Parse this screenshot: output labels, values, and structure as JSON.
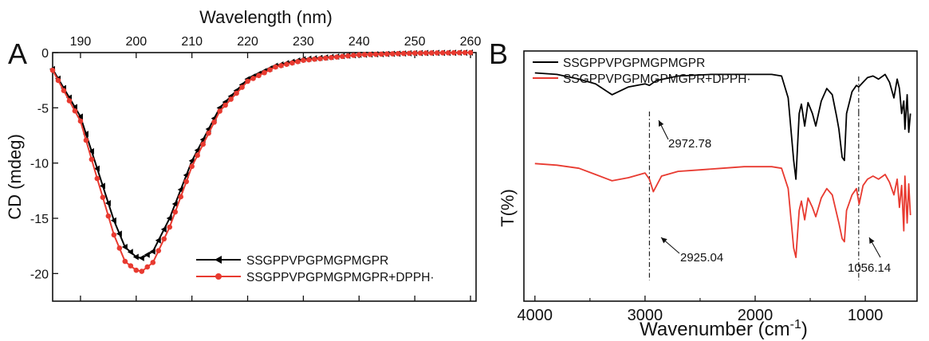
{
  "chart_data": [
    {
      "panel": "A",
      "type": "line",
      "xlabel": "Wavelength (nm)",
      "ylabel": "CD (mdeg)",
      "xlim": [
        185,
        261
      ],
      "ylim": [
        -22.5,
        0
      ],
      "xticks": [
        190,
        200,
        210,
        220,
        230,
        240,
        250,
        260
      ],
      "yticks": [
        0,
        -5,
        -10,
        -15,
        -20
      ],
      "x_axis_position": "top",
      "legend_position": "bottom-right",
      "series": [
        {
          "name": "SSGPPVPGPMGPMGPR",
          "color": "#000000",
          "marker": "left-triangle",
          "x": [
            185,
            190,
            193,
            196,
            198,
            200,
            201,
            203,
            206,
            210,
            215,
            220,
            225,
            230,
            240,
            250,
            260
          ],
          "y": [
            -1.5,
            -5.8,
            -10.5,
            -15.2,
            -17.6,
            -18.5,
            -18.6,
            -18.0,
            -15.0,
            -9.8,
            -5.0,
            -2.4,
            -1.2,
            -0.6,
            -0.2,
            -0.05,
            0
          ]
        },
        {
          "name": "SSGPPVPGPMGPMGPR+DPPH·",
          "color": "#e83a30",
          "marker": "circle",
          "x": [
            185,
            190,
            193,
            196,
            198,
            200,
            201,
            203,
            206,
            210,
            215,
            220,
            225,
            230,
            240,
            250,
            260
          ],
          "y": [
            -1.6,
            -6.2,
            -11.4,
            -16.5,
            -18.9,
            -19.7,
            -19.8,
            -19.0,
            -15.8,
            -10.3,
            -5.3,
            -2.6,
            -1.3,
            -0.7,
            -0.2,
            -0.05,
            0
          ]
        }
      ]
    },
    {
      "panel": "B",
      "type": "line",
      "xlabel": "Wavenumber (cm",
      "xlabel_sup": "-1",
      "xlabel_close": ")",
      "ylabel": "T(%)",
      "xlim": [
        4100,
        530
      ],
      "xticks": [
        4000,
        3000,
        2000,
        1000
      ],
      "legend_position": "top-left",
      "vlines": [
        2960,
        1060
      ],
      "annotations": [
        {
          "text": "2972.78",
          "x": 2960,
          "series": 0
        },
        {
          "text": "2925.04",
          "x": 2925,
          "series": 1
        },
        {
          "text": "1056.14",
          "x": 1056,
          "series": 1
        }
      ],
      "series": [
        {
          "name": "SSGPPVPGPMGPMGPR",
          "color": "#000000",
          "x": [
            4000,
            3800,
            3600,
            3450,
            3300,
            3150,
            3000,
            2960,
            2900,
            2700,
            2400,
            2100,
            1850,
            1760,
            1700,
            1650,
            1630,
            1600,
            1580,
            1550,
            1520,
            1480,
            1450,
            1400,
            1350,
            1300,
            1260,
            1240,
            1210,
            1190,
            1170,
            1120,
            1080,
            1060,
            1020,
            980,
            930,
            880,
            820,
            780,
            740,
            710,
            690,
            670,
            650,
            640,
            620,
            605,
            590
          ],
          "y": [
            96,
            95,
            92,
            89,
            82,
            87,
            89,
            88,
            91,
            94,
            95,
            95,
            95,
            94,
            80,
            40,
            28,
            70,
            76,
            62,
            77,
            70,
            62,
            78,
            86,
            82,
            68,
            60,
            42,
            40,
            70,
            84,
            88,
            87,
            90,
            93,
            94,
            92,
            95,
            90,
            80,
            92,
            86,
            70,
            78,
            60,
            82,
            58,
            70
          ]
        },
        {
          "name": "SSGPPVPGPMGPMGPR+DPPH·",
          "color": "#e83a30",
          "x": [
            4000,
            3800,
            3600,
            3450,
            3300,
            3150,
            3000,
            2960,
            2925,
            2850,
            2700,
            2500,
            2300,
            2100,
            1850,
            1760,
            1700,
            1650,
            1630,
            1600,
            1580,
            1550,
            1520,
            1480,
            1450,
            1400,
            1350,
            1300,
            1260,
            1240,
            1210,
            1190,
            1170,
            1120,
            1080,
            1056,
            1020,
            980,
            930,
            880,
            820,
            780,
            740,
            710,
            690,
            670,
            650,
            640,
            620,
            605,
            590
          ],
          "y": [
            38,
            37,
            35,
            31,
            27,
            29,
            32,
            28,
            20,
            30,
            33,
            34,
            35,
            36,
            36,
            35,
            22,
            -16,
            -22,
            8,
            14,
            2,
            16,
            10,
            4,
            16,
            22,
            18,
            6,
            0,
            -10,
            -12,
            8,
            18,
            22,
            12,
            24,
            28,
            30,
            28,
            31,
            26,
            18,
            28,
            10,
            24,
            -5,
            30,
            0,
            25,
            5
          ]
        }
      ]
    }
  ]
}
